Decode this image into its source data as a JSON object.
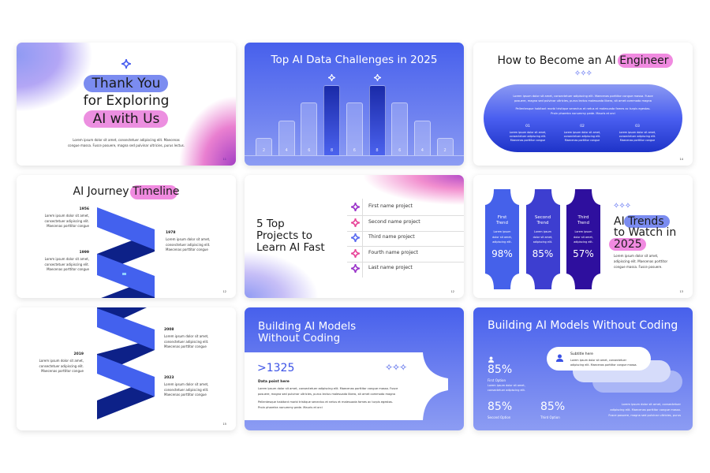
{
  "slides": [
    {
      "id": "thank-you",
      "title_lines": [
        "Thank You",
        "for Exploring",
        "AI with Us"
      ],
      "body": [
        "Lorem ipsum dolor sit amet, consectetuer adipiscing elit. Maecenas",
        "congue massa. Fusce posuere, magna sed pulvinar ultricies, purus lectus."
      ],
      "page": "11"
    },
    {
      "id": "data-challenges",
      "title": "Top AI Data Challenges in 2025",
      "bars": [
        2,
        4,
        6,
        8,
        6,
        8,
        6,
        4,
        2
      ],
      "highlighted": [
        3,
        5
      ],
      "colors": {
        "highlight": "#1a2aa8",
        "bar": "#ffffff"
      }
    },
    {
      "id": "become-engineer",
      "title": "How to Become an AI",
      "title_highlight": "Engineer",
      "body": [
        "Lorem ipsum dolor sit amet, consectetuer adipiscing elit. Maecenas porttitor congue massa. Fusce",
        "posuere, magna sed pulvinar ultricies, purus lectus malesuada libero, sit amet commodo magna",
        "Pellentesque habitant morbi tristique senectus et netus et malesuada fames ac turpis egestas.",
        "Proin pharetra nonummy pede. Mauris et orci"
      ],
      "steps": [
        {
          "num": "01",
          "lines": [
            "Lorem ipsum dolor sit amet,",
            "consectetuer adipiscing elit.",
            "Maecenas porttitor congue"
          ]
        },
        {
          "num": "02",
          "lines": [
            "Lorem ipsum dolor sit amet,",
            "consectetuer adipiscing elit.",
            "Maecenas porttitor congue"
          ]
        },
        {
          "num": "03",
          "lines": [
            "Lorem ipsum dolor sit amet,",
            "consectetuer adipiscing elit.",
            "Maecenas porttitor congue"
          ]
        }
      ],
      "page": "14"
    },
    {
      "id": "journey-timeline",
      "title": "AI Journey",
      "title_highlight": "Timeline",
      "events": [
        {
          "year": "1956",
          "lines": [
            "Lorem ipsum dolor sit amet,",
            "consectetuer adipiscing elit.",
            "Maecenas porttitor congue"
          ]
        },
        {
          "year": "1978",
          "lines": [
            "Lorem ipsum dolor sit amet,",
            "consectetuer adipiscing elit.",
            "Maecenas porttitor congue"
          ]
        },
        {
          "year": "1999",
          "lines": [
            "Lorem ipsum dolor sit amet,",
            "consectetuer adipiscing elit.",
            "Maecenas porttitor congue"
          ]
        }
      ],
      "page": "12"
    },
    {
      "id": "top-projects",
      "title_lines": [
        "5 Top",
        "Projects to",
        "Learn AI Fast"
      ],
      "projects": [
        {
          "label": "First name project",
          "color": "#9b35c9"
        },
        {
          "label": "Second name project",
          "color": "#e8479a"
        },
        {
          "label": "Third name project",
          "color": "#5b6cf0"
        },
        {
          "label": "Fourth name project",
          "color": "#e8479a"
        },
        {
          "label": "Last name project",
          "color": "#9b35c9"
        }
      ],
      "page": "12"
    },
    {
      "id": "trends",
      "trends": [
        {
          "name": [
            "First",
            "Trend"
          ],
          "lines": [
            "Lorem ipsum",
            "dolor sit amet,",
            "adipiscing elit."
          ],
          "value": "98%",
          "color": "#4561ea"
        },
        {
          "name": [
            "Second",
            "Trend"
          ],
          "lines": [
            "Lorem ipsum",
            "dolor sit amet,",
            "adipiscing elit."
          ],
          "value": "85%",
          "color": "#3d3ed0"
        },
        {
          "name": [
            "Third",
            "Trend"
          ],
          "lines": [
            "Lorem ipsum",
            "dolor sit amet,",
            "adipiscing elit."
          ],
          "value": "57%",
          "color": "#2e0f9e"
        }
      ],
      "title_a": "AI",
      "title_highlight": "Trends",
      "title_b": "to Watch in",
      "title_year": "2025",
      "body": [
        "Lorem ipsum dolor sit amet,",
        "adipiscing elit. Maecenas porttitor",
        "congue massa. Fusce posuere."
      ],
      "page": "13"
    },
    {
      "id": "timeline-2",
      "events": [
        {
          "year": "2008",
          "lines": [
            "Lorem ipsum dolor sit amet,",
            "consectetuer adipiscing elit.",
            "Maecenas porttitor congue"
          ]
        },
        {
          "year": "2019",
          "lines": [
            "Lorem ipsum dolor sit amet,",
            "consectetuer adipiscing elit.",
            "Maecenas porttitor congue"
          ]
        },
        {
          "year": "2023",
          "lines": [
            "Lorem ipsum dolor sit amet,",
            "consectetuer adipiscing elit.",
            "Maecenas porttitor congue"
          ]
        }
      ],
      "page": "15"
    },
    {
      "id": "no-code-1",
      "title_lines": [
        "Building AI Models",
        "Without Coding"
      ],
      "stat": ">1325",
      "subtitle": "Data point here",
      "body": [
        "Lorem ipsum dolor sit amet, consectetuer adipiscing elit. Maecenas porttitor congue massa. Fusce",
        "posuere, magna sed pulvinar ultricies, purus lectus malesuada libero, sit amet commodo magna",
        "Pellentesque habitant morbi tristique senectus et netus et malesuada fames ac turpis egestas.",
        "Proin pharetra nonummy pede. Mauris et orci"
      ]
    },
    {
      "id": "no-code-2",
      "title": "Building AI Models Without Coding",
      "first": {
        "value": "85%",
        "label": "First Option",
        "lines": [
          "Lorem ipsum dolor sit amet,",
          "consectetuer adipiscing elit."
        ]
      },
      "second": {
        "value": "85%",
        "label": "Second Option"
      },
      "third": {
        "value": "85%",
        "label": "Third Option"
      },
      "card": {
        "title": "Subtitle here",
        "lines": [
          "Lorem ipsum dolor sit amet, consectetuer",
          "adipiscing elit. Maecenas porttitor congue massa."
        ]
      },
      "body": [
        "Lorem ipsum dolor sit amet, consectetuer",
        "adipiscing elit. Maecenas porttitor congue massa.",
        "Fusce posuere, magna sed pulvinar ultricies, purus"
      ]
    }
  ],
  "colors": {
    "accent_blue": "#4a5ff0",
    "accent_pink": "#f08ae0",
    "pill_blue": "#7b8cf0",
    "dark_blue": "#0d2188",
    "ribbon_blue": "#4361ee"
  }
}
